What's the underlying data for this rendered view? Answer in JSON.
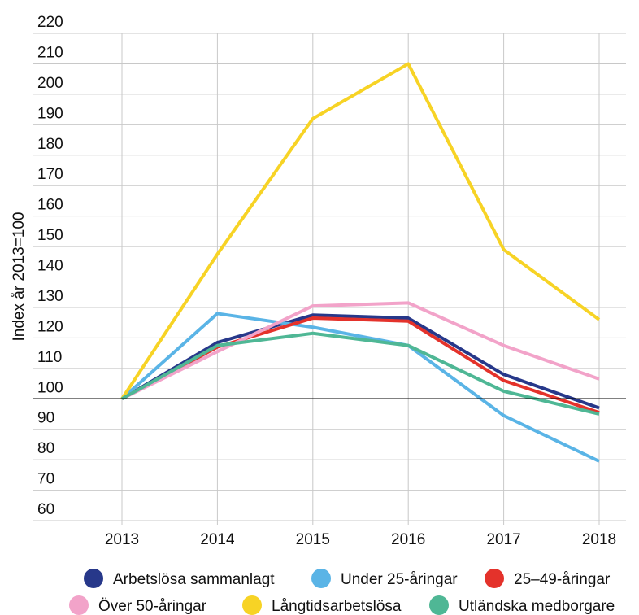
{
  "chart_data": {
    "type": "line",
    "ylabel": "Index år 2013=100",
    "categories": [
      "2013",
      "2014",
      "2015",
      "2016",
      "2017",
      "2018"
    ],
    "series": [
      {
        "name": "Arbetslösa sammanlagt",
        "color": "#27388a",
        "values": [
          100,
          118.5,
          127.5,
          126.5,
          108,
          97
        ]
      },
      {
        "name": "Under 25-åringar",
        "color": "#5ab4e6",
        "values": [
          100,
          128,
          123.5,
          117.5,
          94.5,
          79.5
        ]
      },
      {
        "name": "25–49-åringar",
        "color": "#e4322b",
        "values": [
          100,
          117,
          126.5,
          125.5,
          106,
          95.5
        ]
      },
      {
        "name": "Över 50-åringar",
        "color": "#f2a3c9",
        "values": [
          100,
          115.5,
          130.5,
          131.5,
          117.5,
          106.5
        ]
      },
      {
        "name": "Långtidsarbetslösa",
        "color": "#f7d325",
        "values": [
          100,
          147.5,
          192,
          210,
          149,
          126
        ]
      },
      {
        "name": "Utländska medborgare",
        "color": "#4fb795",
        "values": [
          100,
          117.5,
          121.5,
          117.5,
          102.5,
          95
        ]
      }
    ],
    "reference_line": 100,
    "ylim": [
      60,
      220
    ],
    "yticks": [
      60,
      70,
      80,
      90,
      100,
      110,
      120,
      130,
      140,
      150,
      160,
      170,
      180,
      190,
      200,
      210,
      220
    ],
    "grid": true
  }
}
